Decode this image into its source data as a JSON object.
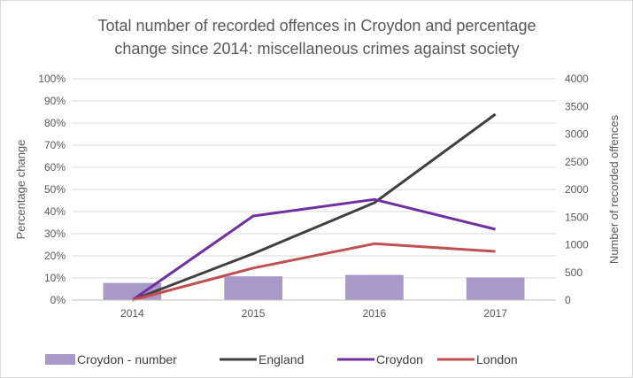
{
  "chart_data": {
    "type": "bar+line",
    "title_lines": [
      "Total number of recorded offences in Croydon and percentage",
      "change since 2014: miscellaneous crimes against society"
    ],
    "categories": [
      "2014",
      "2015",
      "2016",
      "2017"
    ],
    "y_left": {
      "label": "Percentage change",
      "range": [
        0,
        100
      ],
      "ticks": [
        "0%",
        "10%",
        "20%",
        "30%",
        "40%",
        "50%",
        "60%",
        "70%",
        "80%",
        "90%",
        "100%"
      ]
    },
    "y_right": {
      "label": "Number of recorded offences",
      "range": [
        0,
        4000
      ],
      "ticks": [
        "0",
        "500",
        "1000",
        "1500",
        "2000",
        "2500",
        "3000",
        "3500",
        "4000"
      ]
    },
    "bars": {
      "name": "Croydon - number",
      "axis": "right",
      "values": [
        310,
        430,
        455,
        410
      ],
      "color": "#a999c9"
    },
    "series": [
      {
        "name": "England",
        "axis": "left",
        "values": [
          0,
          21,
          44,
          84
        ],
        "color": "#404040"
      },
      {
        "name": "Croydon",
        "axis": "left",
        "values": [
          0,
          38,
          45.5,
          32
        ],
        "color": "#7030a0"
      },
      {
        "name": "London",
        "axis": "left",
        "values": [
          0,
          14.5,
          25.5,
          22
        ],
        "color": "#c0504d"
      }
    ],
    "gridlines": true,
    "legend_position": "bottom"
  }
}
